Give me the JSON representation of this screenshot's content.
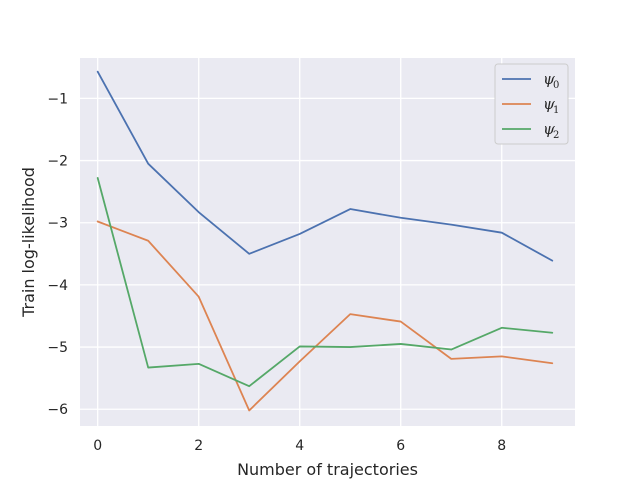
{
  "chart_data": {
    "type": "line",
    "title": "",
    "xlabel": "Number of trajectories",
    "ylabel": "Train log-likelihood",
    "x": [
      0,
      1,
      2,
      3,
      4,
      5,
      6,
      7,
      8,
      9
    ],
    "xlim": [
      -0.35,
      9.45
    ],
    "ylim": [
      -6.27,
      -0.35
    ],
    "xticks": [
      0,
      2,
      4,
      6,
      8
    ],
    "yticks": [
      -1,
      -2,
      -3,
      -4,
      -5,
      -6
    ],
    "xtick_labels": [
      "0",
      "2",
      "4",
      "6",
      "8"
    ],
    "ytick_labels": [
      "−1",
      "−2",
      "−3",
      "−4",
      "−5",
      "−6"
    ],
    "grid": true,
    "background": "#eaeaf2",
    "legend_position": "top-right",
    "series": [
      {
        "name": "ψ",
        "subscript": "0",
        "color": "#4c72b0",
        "values": [
          -0.57,
          -2.05,
          -2.83,
          -3.5,
          -3.18,
          -2.78,
          -2.92,
          -3.03,
          -3.16,
          -3.61
        ]
      },
      {
        "name": "ψ",
        "subscript": "1",
        "color": "#dd8452",
        "values": [
          -2.98,
          -3.29,
          -4.19,
          -6.02,
          -5.23,
          -4.47,
          -4.59,
          -5.19,
          -5.15,
          -5.26
        ]
      },
      {
        "name": "ψ",
        "subscript": "2",
        "color": "#55a868",
        "values": [
          -2.28,
          -5.33,
          -5.27,
          -5.63,
          -4.99,
          -5.0,
          -4.95,
          -5.04,
          -4.69,
          -4.77
        ]
      }
    ]
  }
}
